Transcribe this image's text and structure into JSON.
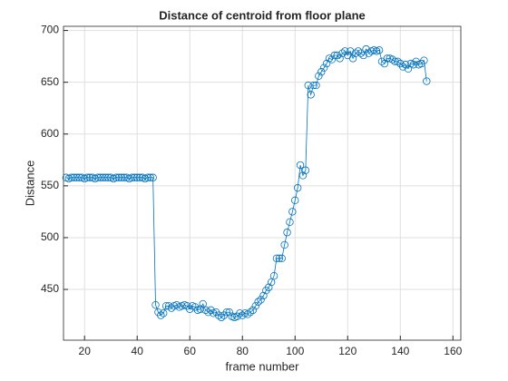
{
  "chart_data": {
    "type": "line",
    "title": "Distance of centroid from floor plane",
    "x_label": "frame number",
    "y_label": "Distance",
    "x": [
      13,
      14,
      15,
      16,
      17,
      18,
      19,
      20,
      21,
      22,
      23,
      24,
      25,
      26,
      27,
      28,
      29,
      30,
      31,
      32,
      33,
      34,
      35,
      36,
      37,
      38,
      39,
      40,
      41,
      42,
      43,
      44,
      45,
      46,
      47,
      48,
      49,
      50,
      51,
      52,
      53,
      54,
      55,
      56,
      57,
      58,
      59,
      60,
      61,
      62,
      63,
      64,
      65,
      66,
      67,
      68,
      69,
      70,
      71,
      72,
      73,
      74,
      75,
      76,
      77,
      78,
      79,
      80,
      81,
      82,
      83,
      84,
      85,
      86,
      87,
      88,
      89,
      90,
      91,
      92,
      93,
      94,
      95,
      96,
      97,
      98,
      99,
      100,
      101,
      102,
      103,
      104,
      105,
      106,
      107,
      108,
      109,
      110,
      111,
      112,
      113,
      114,
      115,
      116,
      117,
      118,
      119,
      120,
      121,
      122,
      123,
      124,
      125,
      126,
      127,
      128,
      129,
      130,
      131,
      132,
      133,
      134,
      135,
      136,
      137,
      138,
      139,
      140,
      141,
      142,
      143,
      144,
      145,
      146,
      147,
      148,
      149,
      150
    ],
    "series": [
      {
        "color": "#0072bd",
        "marker": "circle",
        "values": [
          558,
          557,
          558,
          558,
          558,
          558,
          558,
          557,
          558,
          558,
          558,
          557,
          558,
          558,
          558,
          558,
          558,
          558,
          557,
          558,
          558,
          558,
          558,
          558,
          557,
          558,
          558,
          558,
          558,
          558,
          557,
          558,
          558,
          558,
          435,
          428,
          425,
          427,
          434,
          434,
          432,
          434,
          435,
          433,
          434,
          435,
          434,
          431,
          434,
          433,
          430,
          431,
          436,
          430,
          428,
          430,
          427,
          428,
          425,
          423,
          425,
          428,
          428,
          424,
          423,
          424,
          427,
          425,
          427,
          426,
          428,
          430,
          434,
          438,
          440,
          444,
          449,
          452,
          457,
          463,
          480,
          480,
          480,
          493,
          505,
          515,
          525,
          536,
          548,
          570,
          560,
          565,
          647,
          638,
          647,
          647,
          656,
          660,
          664,
          668,
          673,
          672,
          676,
          676,
          673,
          678,
          680,
          676,
          680,
          673,
          678,
          680,
          678,
          676,
          682,
          678,
          680,
          681,
          680,
          681,
          670,
          668,
          673,
          673,
          672,
          670,
          670,
          668,
          665,
          667,
          663,
          668,
          667,
          670,
          667,
          668,
          671,
          651
        ]
      }
    ],
    "xlim": [
      12,
      163
    ],
    "ylim": [
      401,
      704
    ],
    "xticks": [
      20,
      40,
      60,
      80,
      100,
      120,
      140,
      160
    ],
    "yticks": [
      450,
      500,
      550,
      600,
      650,
      700
    ],
    "grid": true
  }
}
